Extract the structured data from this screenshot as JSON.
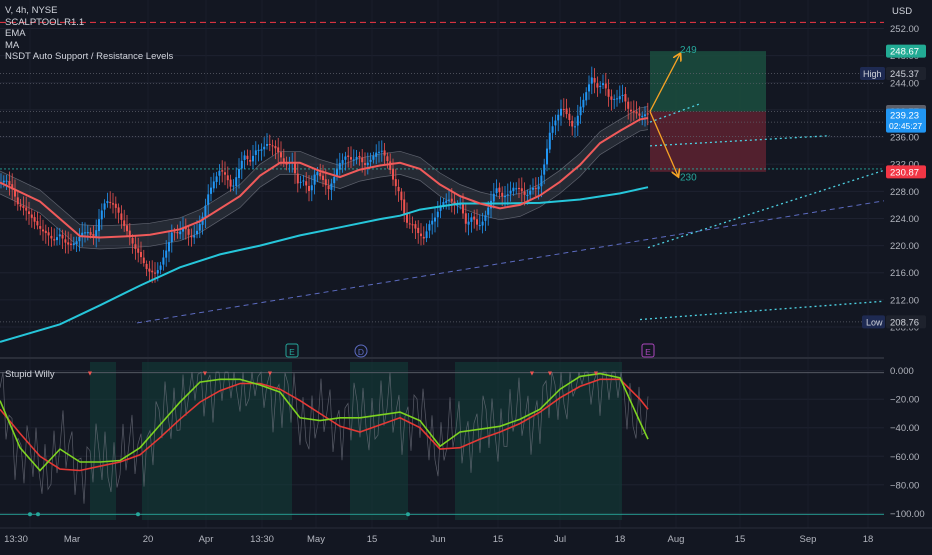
{
  "header": {
    "symbol_line": "V, 4h, NYSE",
    "indicators": [
      "SCALPTOOL R1.1",
      "EMA",
      "MA",
      "NSDT Auto Support / Resistance Levels"
    ],
    "currency": "USD"
  },
  "price_axis": {
    "ticks": [
      "252.00",
      "248.00",
      "244.00",
      "240.00",
      "236.00",
      "232.00",
      "228.00",
      "224.00",
      "220.00",
      "216.00",
      "212.00",
      "208.00"
    ],
    "tick_values": [
      252,
      248,
      244,
      240,
      236,
      232,
      228,
      224,
      220,
      216,
      212,
      208
    ],
    "range": [
      205.2,
      256.2
    ]
  },
  "price_labels": {
    "take_profit": {
      "text": "248.67",
      "value": 248.67,
      "color": "#22ab94"
    },
    "high_tag": "High",
    "high": {
      "text": "245.37",
      "value": 245.37
    },
    "entry": {
      "text": "239.77",
      "value": 239.77
    },
    "last": {
      "text": "239.23",
      "value": 239.23,
      "countdown": "02:45:27",
      "color": "#2196f3"
    },
    "stop": {
      "text": "230.87",
      "value": 230.87,
      "color": "#f23645"
    },
    "low_tag": "Low",
    "low": {
      "text": "208.76",
      "value": 208.76
    }
  },
  "annotations": {
    "target_up": "249",
    "target_down": "230",
    "events": [
      "E",
      "D",
      "E"
    ]
  },
  "oscillator": {
    "title": "Stupid Willy",
    "ticks": [
      "0.000",
      "−20.00",
      "−40.00",
      "−60.00",
      "−80.00",
      "−100.00"
    ],
    "tick_values": [
      0,
      -20,
      -40,
      -60,
      -80,
      -100
    ],
    "range": [
      -104.7,
      3.3
    ]
  },
  "time_axis": {
    "labels": [
      "13:30",
      "Mar",
      "20",
      "Apr",
      "13:30",
      "May",
      "15",
      "Jun",
      "15",
      "Jul",
      "18",
      "Aug",
      "15",
      "Sep",
      "18"
    ]
  },
  "colors": {
    "background": "#131722",
    "bull": "#2196f3",
    "bear": "#ef5350",
    "ema": "#f05a5a",
    "ma": "#26c6da",
    "willy_fast": "#7ed321",
    "willy_bear": "#e53935",
    "tp_zone": "#1b4d3e",
    "sl_zone": "#5e2230",
    "arrow": "#f7a325"
  },
  "chart_data": {
    "type": "candlestick",
    "symbol": "V",
    "timeframe": "4h",
    "exchange": "NYSE",
    "x_labels": [
      "13:30",
      "Mar",
      "20",
      "Apr",
      "13:30",
      "May",
      "15",
      "Jun",
      "15",
      "Jul",
      "18",
      "Aug",
      "15",
      "Sep",
      "18"
    ],
    "price_series": {
      "name": "close",
      "t": [
        0,
        6,
        12,
        18,
        24,
        30,
        36,
        42,
        48,
        54,
        60,
        66,
        70,
        76,
        82,
        88,
        94,
        100,
        106,
        112,
        118,
        124,
        130,
        136,
        142,
        148,
        154,
        160,
        166,
        172,
        178,
        184,
        190,
        196,
        202,
        208,
        214,
        220,
        226,
        232,
        238,
        244,
        250,
        256,
        262,
        268,
        274,
        280,
        286,
        292,
        298,
        304,
        310,
        316,
        322,
        328,
        334,
        340,
        346,
        352,
        358,
        364,
        370,
        376,
        382,
        388,
        394,
        400,
        406,
        412,
        418,
        424,
        430,
        436,
        442,
        448,
        454,
        460,
        466,
        472,
        478,
        484,
        490,
        496,
        502,
        508,
        514,
        520,
        526,
        532,
        538,
        544,
        550,
        556,
        562,
        568,
        574,
        580,
        586,
        592,
        598,
        604,
        610,
        616,
        622,
        628,
        634,
        640,
        646,
        648
      ],
      "v": [
        229.1,
        229.8,
        228.3,
        226.1,
        225.4,
        224.6,
        223.1,
        222.3,
        221.5,
        220.8,
        221.6,
        220.4,
        219.9,
        220.6,
        221.8,
        222.1,
        220.9,
        224.6,
        226.6,
        226.3,
        225.0,
        223.0,
        221.1,
        219.4,
        218.0,
        216.2,
        215.9,
        216.8,
        219.2,
        222.0,
        221.8,
        222.8,
        221.2,
        221.7,
        224.0,
        227.4,
        229.6,
        231.1,
        230.4,
        228.1,
        231.0,
        233.3,
        232.4,
        234.0,
        234.3,
        235.0,
        234.7,
        233.2,
        231.9,
        232.4,
        229.1,
        229.6,
        227.8,
        231.2,
        229.9,
        228.2,
        230.0,
        232.3,
        233.2,
        232.6,
        233.2,
        231.9,
        232.4,
        233.8,
        233.9,
        232.4,
        229.1,
        227.8,
        223.3,
        223.3,
        221.8,
        221.1,
        223.3,
        224.4,
        226.3,
        226.9,
        226.1,
        226.2,
        223.1,
        224.3,
        222.8,
        223.8,
        226.3,
        228.5,
        227.3,
        227.5,
        228.7,
        228.2,
        227.3,
        228.4,
        228.5,
        231.7,
        236.9,
        238.5,
        240.6,
        238.9,
        237.1,
        240.2,
        242.6,
        244.8,
        243.2,
        244.0,
        241.4,
        241.6,
        242.4,
        240.2,
        239.6,
        239.1,
        239.4,
        239.23
      ]
    },
    "ema": {
      "name": "EMA",
      "t": [
        0,
        40,
        80,
        100,
        130,
        150,
        180,
        200,
        240,
        260,
        280,
        300,
        320,
        340,
        360,
        380,
        400,
        420,
        440,
        460,
        480,
        500,
        520,
        540,
        560,
        580,
        600,
        620,
        640,
        648
      ],
      "v": [
        229.3,
        226.5,
        221.4,
        221.2,
        221.4,
        221.6,
        222.4,
        223.6,
        227.3,
        230.3,
        232.2,
        232.2,
        231.0,
        230.1,
        231.2,
        231.8,
        232.2,
        231.3,
        229.0,
        227.3,
        226.2,
        225.5,
        226.0,
        227.4,
        229.4,
        231.9,
        235.1,
        236.9,
        238.6,
        238.8
      ]
    },
    "ma": {
      "name": "MA",
      "t": [
        0,
        60,
        100,
        140,
        180,
        220,
        260,
        300,
        340,
        380,
        400,
        420,
        460,
        500,
        540,
        580,
        620,
        648
      ],
      "v": [
        205.8,
        208.4,
        211.2,
        214.1,
        216.8,
        218.7,
        220.0,
        221.5,
        222.7,
        223.9,
        224.4,
        225.3,
        226.2,
        226.2,
        226.3,
        226.8,
        227.7,
        228.6
      ]
    },
    "levels": {
      "high": 245.37,
      "low": 208.76,
      "last": 239.23,
      "entry": 239.77,
      "take_profit": 248.67,
      "stop_loss": 230.87,
      "target_up": 249,
      "target_down": 230,
      "upper_dashed": 252.9
    },
    "willy": {
      "name": "Stupid Willy",
      "t": [
        0,
        20,
        40,
        60,
        80,
        100,
        120,
        140,
        160,
        180,
        200,
        220,
        240,
        260,
        280,
        300,
        320,
        340,
        360,
        380,
        400,
        420,
        440,
        460,
        480,
        500,
        520,
        540,
        560,
        580,
        600,
        620,
        640,
        648
      ],
      "fast": [
        -21,
        -54,
        -70,
        -55,
        -64,
        -64,
        -63,
        -54,
        -38,
        -22,
        -8,
        -6,
        -6,
        -10,
        -15,
        -33,
        -35,
        -33,
        -33,
        -31,
        -29,
        -35,
        -53,
        -43,
        -41,
        -39,
        -34,
        -27,
        -13,
        -4,
        -2,
        -5,
        -36,
        -48
      ],
      "slow": [
        -27,
        -44,
        -60,
        -69,
        -70,
        -67,
        -64,
        -59,
        -47,
        -34,
        -22,
        -14,
        -9,
        -9,
        -13,
        -21,
        -30,
        -39,
        -43,
        -38,
        -33,
        -40,
        -55,
        -54,
        -48,
        -43,
        -37,
        -29,
        -19,
        -11,
        -6,
        -6,
        -20,
        -27
      ]
    }
  }
}
